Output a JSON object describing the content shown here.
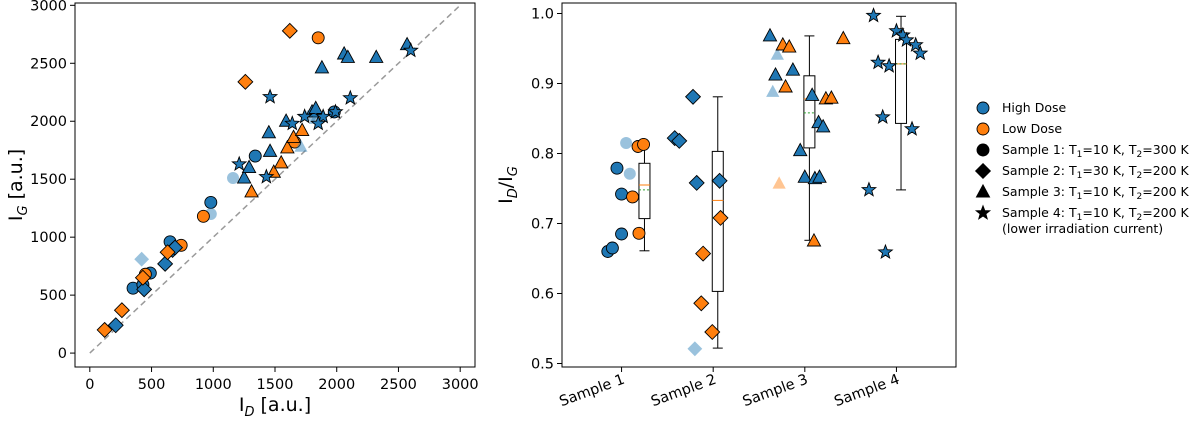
{
  "colors": {
    "high": "#1f77b4",
    "low": "#ff7f0e",
    "identity": "#9a9a9a",
    "median": "#ff7f0e",
    "mean": "#2ca02c"
  },
  "legend": {
    "high_dose": "High Dose",
    "low_dose": "Low Dose",
    "sample1_prefix": "Sample 1: T",
    "sample1_mid": "=10 K, T",
    "sample1_end": "=300 K",
    "sample2_prefix": "Sample 2: T",
    "sample2_mid": "=30 K, T",
    "sample2_end": "=200 K",
    "sample3_prefix": "Sample 3: T",
    "sample3_mid": "=10 K, T",
    "sample3_end": "=200 K",
    "sample4_prefix": "Sample 4: T",
    "sample4_mid": "=10 K, T",
    "sample4_end": "=200 K",
    "sample4_note": "(lower irradiation current)",
    "sub1": "1",
    "sub2": "2"
  },
  "chart_data": [
    {
      "type": "scatter",
      "xlabel_main": "I",
      "xlabel_sub": "D",
      "xlabel_unit": " [a.u.]",
      "ylabel_main": "I",
      "ylabel_sub": "G",
      "ylabel_unit": " [a.u.]",
      "xlim": [
        -120,
        3120
      ],
      "ylim": [
        -120,
        3020
      ],
      "xticks": [
        0,
        500,
        1000,
        1500,
        2000,
        2500,
        3000
      ],
      "yticks": [
        0,
        500,
        1000,
        1500,
        2000,
        2500,
        3000
      ],
      "identity_line": [
        0,
        3000
      ],
      "points": [
        {
          "x": 350,
          "y": 560,
          "m": "circle",
          "d": "high"
        },
        {
          "x": 430,
          "y": 590,
          "m": "circle",
          "d": "high"
        },
        {
          "x": 490,
          "y": 690,
          "m": "circle",
          "d": "high"
        },
        {
          "x": 650,
          "y": 960,
          "m": "circle",
          "d": "high"
        },
        {
          "x": 980,
          "y": 1300,
          "m": "circle",
          "d": "high"
        },
        {
          "x": 1340,
          "y": 1700,
          "m": "circle",
          "d": "high"
        },
        {
          "x": 1980,
          "y": 2080,
          "m": "circle",
          "d": "high"
        },
        {
          "x": 980,
          "y": 1200,
          "m": "circle",
          "d": "high",
          "light": true
        },
        {
          "x": 1160,
          "y": 1510,
          "m": "circle",
          "d": "high",
          "light": true
        },
        {
          "x": 1790,
          "y": 2050,
          "m": "circle",
          "d": "high",
          "light": true
        },
        {
          "x": 450,
          "y": 680,
          "m": "circle",
          "d": "low"
        },
        {
          "x": 740,
          "y": 930,
          "m": "circle",
          "d": "low"
        },
        {
          "x": 920,
          "y": 1180,
          "m": "circle",
          "d": "low"
        },
        {
          "x": 1850,
          "y": 2720,
          "m": "circle",
          "d": "low"
        },
        {
          "x": 1660,
          "y": 1820,
          "m": "circle",
          "d": "low"
        },
        {
          "x": 210,
          "y": 240,
          "m": "diamond",
          "d": "high"
        },
        {
          "x": 440,
          "y": 550,
          "m": "diamond",
          "d": "high"
        },
        {
          "x": 610,
          "y": 770,
          "m": "diamond",
          "d": "high"
        },
        {
          "x": 670,
          "y": 890,
          "m": "diamond",
          "d": "high"
        },
        {
          "x": 690,
          "y": 910,
          "m": "diamond",
          "d": "high"
        },
        {
          "x": 420,
          "y": 810,
          "m": "diamond",
          "d": "high",
          "light": true
        },
        {
          "x": 120,
          "y": 200,
          "m": "diamond",
          "d": "low"
        },
        {
          "x": 260,
          "y": 370,
          "m": "diamond",
          "d": "low"
        },
        {
          "x": 430,
          "y": 650,
          "m": "diamond",
          "d": "low"
        },
        {
          "x": 630,
          "y": 870,
          "m": "diamond",
          "d": "low"
        },
        {
          "x": 1260,
          "y": 2340,
          "m": "diamond",
          "d": "low"
        },
        {
          "x": 1620,
          "y": 2780,
          "m": "diamond",
          "d": "low"
        },
        {
          "x": 1250,
          "y": 1510,
          "m": "triangle",
          "d": "high"
        },
        {
          "x": 1290,
          "y": 1600,
          "m": "triangle",
          "d": "high"
        },
        {
          "x": 1450,
          "y": 1900,
          "m": "triangle",
          "d": "high"
        },
        {
          "x": 1460,
          "y": 1740,
          "m": "triangle",
          "d": "high"
        },
        {
          "x": 1590,
          "y": 2000,
          "m": "triangle",
          "d": "high"
        },
        {
          "x": 1800,
          "y": 2080,
          "m": "triangle",
          "d": "high"
        },
        {
          "x": 1830,
          "y": 2110,
          "m": "triangle",
          "d": "high"
        },
        {
          "x": 1880,
          "y": 2460,
          "m": "triangle",
          "d": "high"
        },
        {
          "x": 2060,
          "y": 2580,
          "m": "triangle",
          "d": "high"
        },
        {
          "x": 2090,
          "y": 2550,
          "m": "triangle",
          "d": "high"
        },
        {
          "x": 2320,
          "y": 2550,
          "m": "triangle",
          "d": "high"
        },
        {
          "x": 2570,
          "y": 2660,
          "m": "triangle",
          "d": "high"
        },
        {
          "x": 1710,
          "y": 1780,
          "m": "triangle",
          "d": "high",
          "light": true
        },
        {
          "x": 1830,
          "y": 2020,
          "m": "triangle",
          "d": "high",
          "light": true
        },
        {
          "x": 1310,
          "y": 1390,
          "m": "triangle",
          "d": "low"
        },
        {
          "x": 1490,
          "y": 1560,
          "m": "triangle",
          "d": "low"
        },
        {
          "x": 1550,
          "y": 1640,
          "m": "triangle",
          "d": "low"
        },
        {
          "x": 1600,
          "y": 1770,
          "m": "triangle",
          "d": "low"
        },
        {
          "x": 1650,
          "y": 1860,
          "m": "triangle",
          "d": "low"
        },
        {
          "x": 1720,
          "y": 1920,
          "m": "triangle",
          "d": "low"
        },
        {
          "x": 1210,
          "y": 1630,
          "m": "star",
          "d": "high"
        },
        {
          "x": 1430,
          "y": 1520,
          "m": "star",
          "d": "high"
        },
        {
          "x": 1460,
          "y": 2210,
          "m": "star",
          "d": "high"
        },
        {
          "x": 1640,
          "y": 1980,
          "m": "star",
          "d": "high"
        },
        {
          "x": 1740,
          "y": 2040,
          "m": "star",
          "d": "high"
        },
        {
          "x": 1890,
          "y": 2040,
          "m": "star",
          "d": "high"
        },
        {
          "x": 1850,
          "y": 1980,
          "m": "star",
          "d": "high"
        },
        {
          "x": 1990,
          "y": 2080,
          "m": "star",
          "d": "high"
        },
        {
          "x": 2110,
          "y": 2200,
          "m": "star",
          "d": "high"
        },
        {
          "x": 2600,
          "y": 2610,
          "m": "star",
          "d": "high"
        }
      ]
    },
    {
      "type": "box+strip",
      "ylabel_main": "I",
      "ylabel_sub1": "D",
      "ylabel_sep": "/I",
      "ylabel_sub2": "G",
      "categories": [
        "Sample 1",
        "Sample 2",
        "Sample 3",
        "Sample 4"
      ],
      "xlim": [
        0.35,
        4.65
      ],
      "ylim": [
        0.495,
        1.015
      ],
      "yticks": [
        0.5,
        0.6,
        0.7,
        0.8,
        0.9,
        1.0
      ],
      "ytick_labels": [
        "0.5",
        "0.6",
        "0.7",
        "0.8",
        "0.9",
        "1.0"
      ],
      "boxes": [
        {
          "pos": 1.25,
          "whislo": 0.661,
          "q1": 0.707,
          "med": 0.755,
          "mean": 0.748,
          "q3": 0.786,
          "whishi": 0.814
        },
        {
          "pos": 2.05,
          "whislo": 0.522,
          "q1": 0.603,
          "med": 0.733,
          "mean": 0.708,
          "q3": 0.803,
          "whishi": 0.881
        },
        {
          "pos": 3.05,
          "whislo": 0.676,
          "q1": 0.808,
          "med": 0.878,
          "mean": 0.858,
          "q3": 0.911,
          "whishi": 0.968
        },
        {
          "pos": 4.05,
          "whislo": 0.748,
          "q1": 0.843,
          "med": 0.928,
          "mean": 0.928,
          "q3": 0.963,
          "whishi": 0.996
        }
      ],
      "points": [
        {
          "x": 0.85,
          "y": 0.66,
          "m": "circle",
          "d": "high"
        },
        {
          "x": 0.9,
          "y": 0.665,
          "m": "circle",
          "d": "high"
        },
        {
          "x": 1.0,
          "y": 0.685,
          "m": "circle",
          "d": "high"
        },
        {
          "x": 0.95,
          "y": 0.779,
          "m": "circle",
          "d": "high"
        },
        {
          "x": 1.0,
          "y": 0.742,
          "m": "circle",
          "d": "high"
        },
        {
          "x": 1.05,
          "y": 0.815,
          "m": "circle",
          "d": "high",
          "light": true
        },
        {
          "x": 1.09,
          "y": 0.771,
          "m": "circle",
          "d": "high",
          "light": true
        },
        {
          "x": 1.12,
          "y": 0.738,
          "m": "circle",
          "d": "low"
        },
        {
          "x": 1.18,
          "y": 0.81,
          "m": "circle",
          "d": "low"
        },
        {
          "x": 1.24,
          "y": 0.813,
          "m": "circle",
          "d": "low"
        },
        {
          "x": 1.19,
          "y": 0.686,
          "m": "circle",
          "d": "low"
        },
        {
          "x": 1.58,
          "y": 0.822,
          "m": "diamond",
          "d": "high"
        },
        {
          "x": 1.63,
          "y": 0.818,
          "m": "diamond",
          "d": "high"
        },
        {
          "x": 1.78,
          "y": 0.881,
          "m": "diamond",
          "d": "high"
        },
        {
          "x": 1.82,
          "y": 0.758,
          "m": "diamond",
          "d": "high"
        },
        {
          "x": 2.07,
          "y": 0.761,
          "m": "diamond",
          "d": "high"
        },
        {
          "x": 1.8,
          "y": 0.521,
          "m": "diamond",
          "d": "high",
          "light": true
        },
        {
          "x": 1.89,
          "y": 0.657,
          "m": "diamond",
          "d": "low"
        },
        {
          "x": 1.87,
          "y": 0.586,
          "m": "diamond",
          "d": "low"
        },
        {
          "x": 2.08,
          "y": 0.708,
          "m": "diamond",
          "d": "low"
        },
        {
          "x": 1.99,
          "y": 0.545,
          "m": "diamond",
          "d": "low"
        },
        {
          "x": 2.62,
          "y": 0.968,
          "m": "triangle",
          "d": "high"
        },
        {
          "x": 2.68,
          "y": 0.912,
          "m": "triangle",
          "d": "high"
        },
        {
          "x": 2.7,
          "y": 0.941,
          "m": "triangle",
          "d": "high",
          "light": true
        },
        {
          "x": 2.65,
          "y": 0.888,
          "m": "triangle",
          "d": "high",
          "light": true
        },
        {
          "x": 2.87,
          "y": 0.919,
          "m": "triangle",
          "d": "high"
        },
        {
          "x": 2.95,
          "y": 0.804,
          "m": "triangle",
          "d": "high"
        },
        {
          "x": 3.0,
          "y": 0.766,
          "m": "triangle",
          "d": "high"
        },
        {
          "x": 3.08,
          "y": 0.883,
          "m": "triangle",
          "d": "high"
        },
        {
          "x": 3.15,
          "y": 0.844,
          "m": "triangle",
          "d": "high"
        },
        {
          "x": 3.2,
          "y": 0.838,
          "m": "triangle",
          "d": "high"
        },
        {
          "x": 3.11,
          "y": 0.764,
          "m": "triangle",
          "d": "high"
        },
        {
          "x": 3.16,
          "y": 0.766,
          "m": "triangle",
          "d": "high"
        },
        {
          "x": 2.72,
          "y": 0.757,
          "m": "triangle",
          "d": "low",
          "light": true
        },
        {
          "x": 2.76,
          "y": 0.955,
          "m": "triangle",
          "d": "low"
        },
        {
          "x": 2.83,
          "y": 0.952,
          "m": "triangle",
          "d": "low"
        },
        {
          "x": 2.79,
          "y": 0.895,
          "m": "triangle",
          "d": "low"
        },
        {
          "x": 3.23,
          "y": 0.878,
          "m": "triangle",
          "d": "low"
        },
        {
          "x": 3.29,
          "y": 0.879,
          "m": "triangle",
          "d": "low"
        },
        {
          "x": 3.1,
          "y": 0.675,
          "m": "triangle",
          "d": "low"
        },
        {
          "x": 3.42,
          "y": 0.964,
          "m": "triangle",
          "d": "low"
        },
        {
          "x": 3.7,
          "y": 0.748,
          "m": "star",
          "d": "high"
        },
        {
          "x": 3.75,
          "y": 0.997,
          "m": "star",
          "d": "high"
        },
        {
          "x": 3.8,
          "y": 0.93,
          "m": "star",
          "d": "high"
        },
        {
          "x": 3.85,
          "y": 0.852,
          "m": "star",
          "d": "high"
        },
        {
          "x": 3.88,
          "y": 0.659,
          "m": "star",
          "d": "high"
        },
        {
          "x": 3.92,
          "y": 0.925,
          "m": "star",
          "d": "high"
        },
        {
          "x": 4.0,
          "y": 0.975,
          "m": "star",
          "d": "high"
        },
        {
          "x": 4.07,
          "y": 0.969,
          "m": "star",
          "d": "high"
        },
        {
          "x": 4.11,
          "y": 0.962,
          "m": "star",
          "d": "high"
        },
        {
          "x": 4.17,
          "y": 0.835,
          "m": "star",
          "d": "high"
        },
        {
          "x": 4.21,
          "y": 0.955,
          "m": "star",
          "d": "high"
        },
        {
          "x": 4.26,
          "y": 0.943,
          "m": "star",
          "d": "high"
        }
      ]
    }
  ]
}
